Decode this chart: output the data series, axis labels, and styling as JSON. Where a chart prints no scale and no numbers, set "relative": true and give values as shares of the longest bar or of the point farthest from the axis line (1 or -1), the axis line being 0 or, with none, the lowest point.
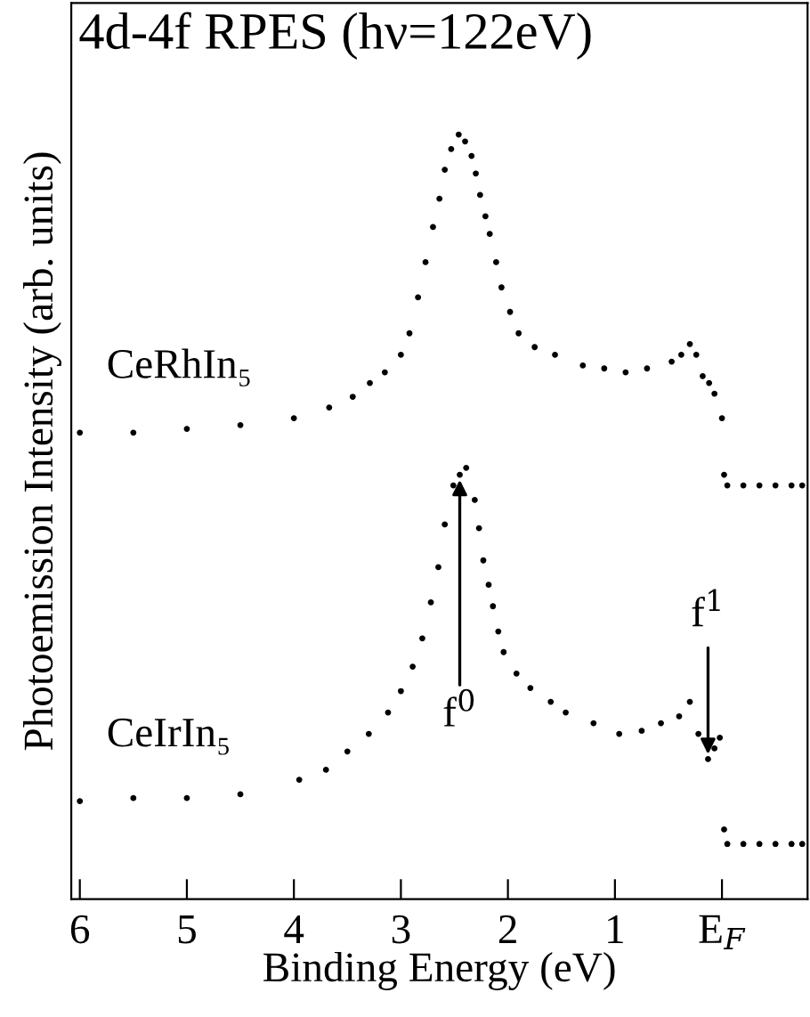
{
  "chart_data": {
    "type": "scatter",
    "relative": true,
    "marker": "circle",
    "grid": false,
    "legend": false,
    "title": "4d-4f RPES (hν=122eV)",
    "xlabel": "Binding Energy (eV)",
    "ylabel": "Photoemission Intensity (arb. units)",
    "xlim": [
      6.08,
      -0.8
    ],
    "xticks": [
      6,
      5,
      4,
      3,
      2,
      1,
      {
        "value": 0,
        "label": "E$_{F}$"
      }
    ],
    "tick_labels": "x",
    "series": [
      {
        "name": "CeRhIn₅",
        "color": "#000000",
        "x": [
          6.0,
          5.5,
          5.0,
          4.5,
          4.0,
          3.67,
          3.45,
          3.29,
          3.15,
          3.0,
          2.92,
          2.84,
          2.77,
          2.7,
          2.64,
          2.59,
          2.53,
          2.46,
          2.4,
          2.34,
          2.3,
          2.26,
          2.21,
          2.17,
          2.11,
          2.06,
          1.98,
          1.9,
          1.75,
          1.56,
          1.3,
          1.1,
          0.9,
          0.7,
          0.47,
          0.38,
          0.3,
          0.24,
          0.18,
          0.12,
          0.07,
          0.0,
          -0.02,
          -0.05,
          -0.2,
          -0.35,
          -0.5,
          -0.65,
          -0.75
        ],
        "values": [
          0.61,
          0.61,
          0.615,
          0.62,
          0.629,
          0.643,
          0.657,
          0.675,
          0.689,
          0.712,
          0.74,
          0.787,
          0.833,
          0.879,
          0.916,
          0.954,
          0.981,
          1.0,
          0.991,
          0.972,
          0.949,
          0.921,
          0.893,
          0.87,
          0.833,
          0.8,
          0.768,
          0.74,
          0.722,
          0.712,
          0.698,
          0.694,
          0.689,
          0.694,
          0.703,
          0.712,
          0.726,
          0.712,
          0.684,
          0.675,
          0.661,
          0.629,
          0.555,
          0.541,
          0.541,
          0.541,
          0.541,
          0.541,
          0.541
        ]
      },
      {
        "name": "CeIrIn₅",
        "color": "#000000",
        "x": [
          6.0,
          5.5,
          5.0,
          4.5,
          3.95,
          3.7,
          3.5,
          3.3,
          3.12,
          3.0,
          2.89,
          2.8,
          2.72,
          2.65,
          2.59,
          2.51,
          2.45,
          2.39,
          2.31,
          2.27,
          2.23,
          2.18,
          2.14,
          2.09,
          2.04,
          1.92,
          1.79,
          1.6,
          1.46,
          1.2,
          0.96,
          0.75,
          0.57,
          0.4,
          0.3,
          0.22,
          0.13,
          0.07,
          0.02,
          -0.02,
          -0.05,
          -0.2,
          -0.35,
          -0.5,
          -0.65,
          -0.75
        ],
        "values": [
          0.128,
          0.132,
          0.132,
          0.137,
          0.156,
          0.169,
          0.193,
          0.216,
          0.244,
          0.272,
          0.304,
          0.341,
          0.388,
          0.434,
          0.49,
          0.541,
          0.555,
          0.564,
          0.522,
          0.485,
          0.443,
          0.411,
          0.383,
          0.35,
          0.323,
          0.295,
          0.276,
          0.258,
          0.244,
          0.23,
          0.216,
          0.22,
          0.23,
          0.239,
          0.258,
          0.216,
          0.183,
          0.197,
          0.211,
          0.091,
          0.072,
          0.072,
          0.072,
          0.072,
          0.072,
          0.072
        ]
      }
    ],
    "annotations": [
      {
        "text": "f$^{0}$",
        "x": 2.45,
        "y": 0.555
      },
      {
        "text": "f$^{1}$",
        "x": 0.13,
        "y": 0.183
      }
    ]
  }
}
